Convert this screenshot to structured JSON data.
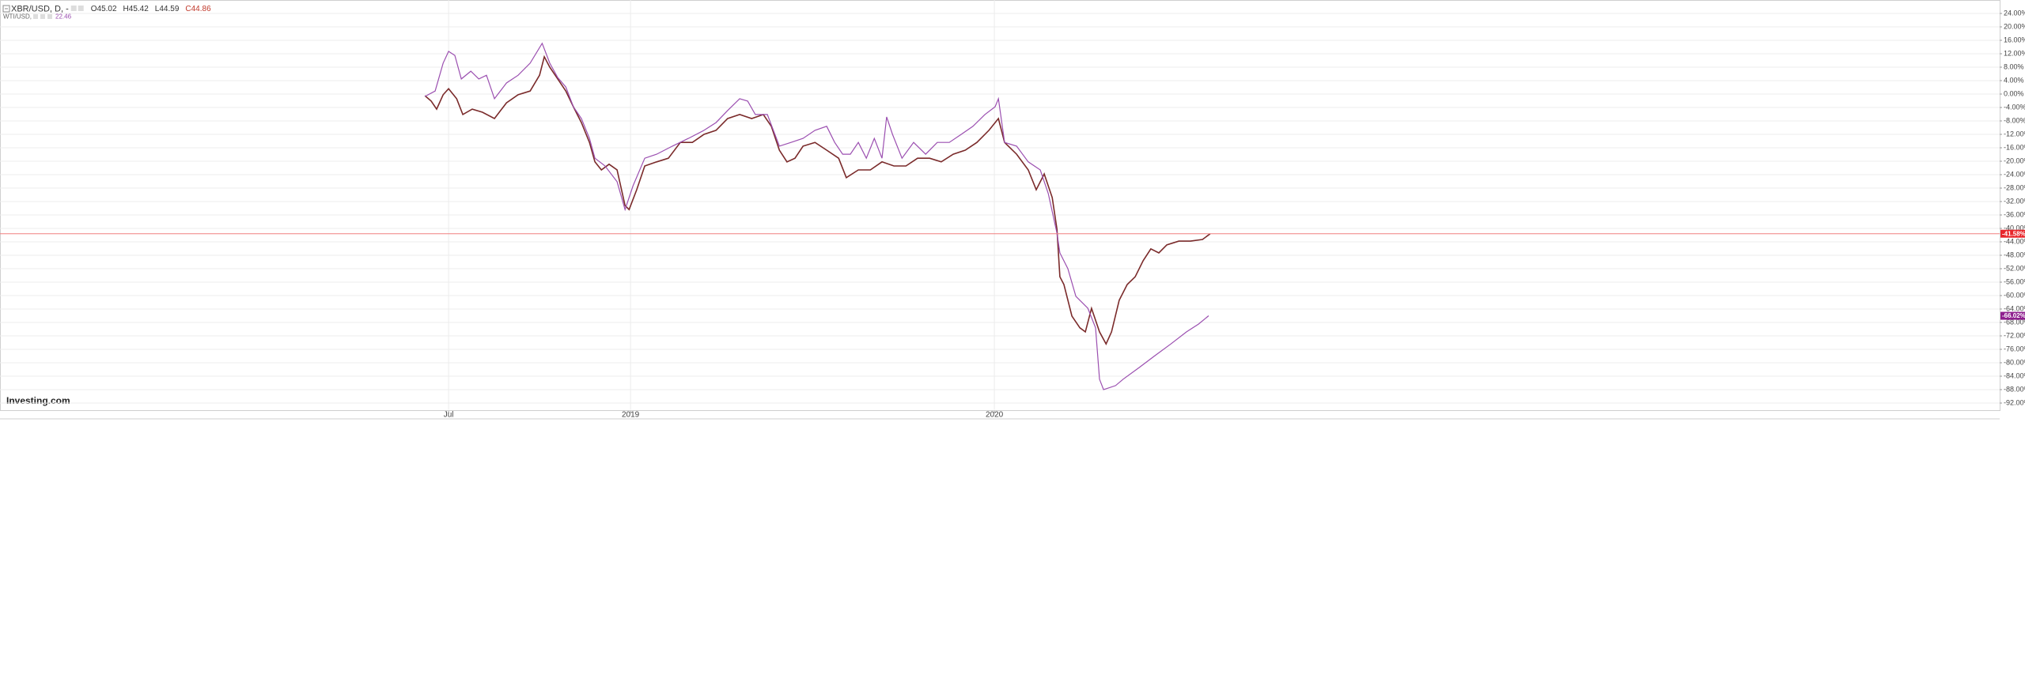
{
  "chart_data": {
    "type": "line",
    "logo": "Investing.com",
    "series": [
      {
        "name": "XBR/USD, D, -",
        "color": "#7a2a2a",
        "ohlc": [
          "O45.02",
          "H45.42",
          "L44.59",
          "C44.86"
        ],
        "last": {
          "value": -41.58,
          "label": "-41.58%"
        },
        "tag_color": "#e8262b",
        "x": [
          2018.435,
          2018.452,
          2018.467,
          2018.485,
          2018.5,
          2018.522,
          2018.539,
          2018.565,
          2018.593,
          2018.626,
          2018.659,
          2018.691,
          2018.724,
          2018.75,
          2018.763,
          2018.778,
          2018.8,
          2018.822,
          2018.843,
          2018.865,
          2018.887,
          2018.902,
          2018.92,
          2018.941,
          2018.963,
          2018.985,
          2018.996,
          2019.017,
          2019.039,
          2019.072,
          2019.104,
          2019.137,
          2019.17,
          2019.202,
          2019.235,
          2019.267,
          2019.3,
          2019.333,
          2019.365,
          2019.387,
          2019.409,
          2019.43,
          2019.452,
          2019.474,
          2019.507,
          2019.539,
          2019.572,
          2019.593,
          2019.626,
          2019.659,
          2019.691,
          2019.724,
          2019.757,
          2019.789,
          2019.822,
          2019.854,
          2019.887,
          2019.92,
          2019.952,
          2019.985,
          2020.011,
          2020.028,
          2020.061,
          2020.093,
          2020.115,
          2020.137,
          2020.159,
          2020.172,
          2020.18,
          2020.191,
          2020.213,
          2020.235,
          2020.25,
          2020.267,
          2020.289,
          2020.307,
          2020.322,
          2020.343,
          2020.365,
          2020.387,
          2020.409,
          2020.43,
          2020.452,
          2020.474,
          2020.507,
          2020.539,
          2020.572,
          2020.593
        ],
        "values": [
          -0.5,
          -2.1,
          -4.5,
          -0.2,
          1.6,
          -1.4,
          -6.1,
          -4.5,
          -5.4,
          -7.3,
          -2.6,
          -0.2,
          0.9,
          5.6,
          11.1,
          8.0,
          4.5,
          0.9,
          -3.8,
          -8.5,
          -14.4,
          -20.2,
          -22.6,
          -20.9,
          -22.6,
          -33.2,
          -34.4,
          -28.5,
          -21.4,
          -20.2,
          -19.1,
          -14.4,
          -14.4,
          -12,
          -10.8,
          -7.3,
          -6.1,
          -7.3,
          -6.1,
          -9.6,
          -16.7,
          -20.2,
          -19.1,
          -15.5,
          -14.4,
          -16.7,
          -19.1,
          -24.9,
          -22.6,
          -22.6,
          -20.2,
          -21.4,
          -21.4,
          -19.1,
          -19.1,
          -20.2,
          -17.9,
          -16.7,
          -14.4,
          -10.8,
          -7.3,
          -14.4,
          -17.9,
          -22.6,
          -28.5,
          -23.8,
          -30.8,
          -40.2,
          -54.4,
          -56.7,
          -66.1,
          -69.6,
          -70.8,
          -63.8,
          -70.8,
          -74.4,
          -70.8,
          -61.4,
          -56.7,
          -54.4,
          -49.6,
          -46.1,
          -47.3,
          -44.9,
          -43.8,
          -43.8,
          -43.3,
          -41.6
        ]
      },
      {
        "name": "WTI/USD, -",
        "color": "#9b4fb0",
        "legend_value": "22.46",
        "last": {
          "value": -66.02,
          "label": "-66.02%"
        },
        "tag_color": "#8e1f8e",
        "x": [
          2018.435,
          2018.463,
          2018.485,
          2018.5,
          2018.517,
          2018.535,
          2018.561,
          2018.583,
          2018.604,
          2018.626,
          2018.659,
          2018.691,
          2018.724,
          2018.757,
          2018.778,
          2018.8,
          2018.822,
          2018.843,
          2018.865,
          2018.887,
          2018.902,
          2018.93,
          2018.963,
          2018.985,
          2019.007,
          2019.039,
          2019.072,
          2019.115,
          2019.159,
          2019.202,
          2019.235,
          2019.267,
          2019.3,
          2019.322,
          2019.343,
          2019.376,
          2019.409,
          2019.441,
          2019.474,
          2019.507,
          2019.539,
          2019.561,
          2019.583,
          2019.604,
          2019.626,
          2019.648,
          2019.67,
          2019.691,
          2019.704,
          2019.72,
          2019.746,
          2019.778,
          2019.811,
          2019.843,
          2019.876,
          2019.909,
          2019.941,
          2019.974,
          2020.002,
          2020.011,
          2020.028,
          2020.061,
          2020.093,
          2020.126,
          2020.148,
          2020.172,
          2020.18,
          2020.202,
          2020.224,
          2020.257,
          2020.278,
          2020.289,
          2020.3,
          2020.333,
          2020.354,
          2020.398,
          2020.441,
          2020.485,
          2020.528,
          2020.561,
          2020.589
        ],
        "values": [
          -0.7,
          0.9,
          9.2,
          12.7,
          11.5,
          4.5,
          6.8,
          4.5,
          5.6,
          -1.4,
          3.3,
          5.6,
          9.2,
          15.1,
          9.2,
          4.9,
          2.1,
          -3.8,
          -7.3,
          -13.2,
          -19.1,
          -21.4,
          -26.1,
          -34.4,
          -27.3,
          -19.1,
          -17.9,
          -15.5,
          -13.2,
          -10.8,
          -8.5,
          -4.9,
          -1.4,
          -2.1,
          -6.1,
          -6.1,
          -15.5,
          -14.4,
          -13.2,
          -10.8,
          -9.6,
          -14.4,
          -17.9,
          -17.9,
          -14.4,
          -19.1,
          -13.2,
          -19.1,
          -6.8,
          -12,
          -19.1,
          -14.4,
          -17.9,
          -14.4,
          -14.4,
          -12,
          -9.6,
          -6.1,
          -3.8,
          -1.4,
          -14.4,
          -15.5,
          -20.2,
          -22.6,
          -29.6,
          -41.4,
          -47.3,
          -52,
          -60.2,
          -63.8,
          -69.6,
          -84.9,
          -88,
          -86.8,
          -84.9,
          -81.4,
          -77.9,
          -74.4,
          -70.8,
          -68.5,
          -66.0
        ]
      }
    ],
    "xlim": [
      2017.267,
      2022.763
    ],
    "xticks": [
      {
        "value": 2018.5,
        "label": "Jul"
      },
      {
        "value": 2019,
        "label": "2019"
      },
      {
        "value": 2020,
        "label": "2020"
      }
    ],
    "ylim": [
      -94,
      28
    ],
    "yticks": [
      {
        "value": 24,
        "label": "24.00%"
      },
      {
        "value": 20,
        "label": "20.00%"
      },
      {
        "value": 16,
        "label": "16.00%"
      },
      {
        "value": 12,
        "label": "12.00%"
      },
      {
        "value": 8,
        "label": "8.00%"
      },
      {
        "value": 4,
        "label": "4.00%"
      },
      {
        "value": 0,
        "label": "0.00%"
      },
      {
        "value": -4,
        "label": "-4.00%"
      },
      {
        "value": -8,
        "label": "-8.00%"
      },
      {
        "value": -12,
        "label": "-12.00%"
      },
      {
        "value": -16,
        "label": "-16.00%"
      },
      {
        "value": -20,
        "label": "-20.00%"
      },
      {
        "value": -24,
        "label": "-24.00%"
      },
      {
        "value": -28,
        "label": "-28.00%"
      },
      {
        "value": -32,
        "label": "-32.00%"
      },
      {
        "value": -36,
        "label": "-36.00%"
      },
      {
        "value": -40,
        "label": "-40.00%"
      },
      {
        "value": -44,
        "label": "-44.00%"
      },
      {
        "value": -48,
        "label": "-48.00%"
      },
      {
        "value": -52,
        "label": "-52.00%"
      },
      {
        "value": -56,
        "label": "-56.00%"
      },
      {
        "value": -60,
        "label": "-60.00%"
      },
      {
        "value": -64,
        "label": "-64.00%"
      },
      {
        "value": -68,
        "label": "-68.00%"
      },
      {
        "value": -72,
        "label": "-72.00%"
      },
      {
        "value": -76,
        "label": "-76.00%"
      },
      {
        "value": -80,
        "label": "-80.00%"
      },
      {
        "value": -84,
        "label": "-84.00%"
      },
      {
        "value": -88,
        "label": "-88.00%"
      },
      {
        "value": -92,
        "label": "-92.00%"
      }
    ],
    "grid": true
  }
}
